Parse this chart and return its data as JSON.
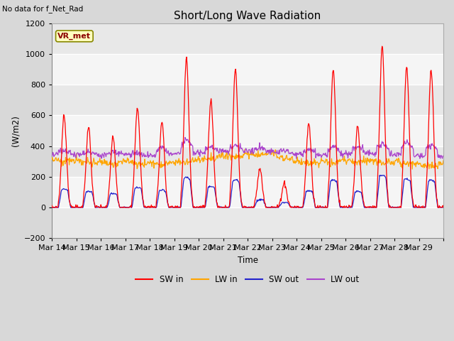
{
  "title": "Short/Long Wave Radiation",
  "xlabel": "Time",
  "ylabel": "(W/m2)",
  "topleft_text": "No data for f_Net_Rad",
  "legend_label_text": "VR_met",
  "ylim": [
    -200,
    1200
  ],
  "yticks": [
    -200,
    0,
    200,
    400,
    600,
    800,
    1000,
    1200
  ],
  "xtick_labels": [
    "Mar 14",
    "Mar 15",
    "Mar 16",
    "Mar 17",
    "Mar 18",
    "Mar 19",
    "Mar 20",
    "Mar 21",
    "Mar 22",
    "Mar 23",
    "Mar 24",
    "Mar 25",
    "Mar 26",
    "Mar 27",
    "Mar 28",
    "Mar 29"
  ],
  "legend_entries": [
    "SW in",
    "LW in",
    "SW out",
    "LW out"
  ],
  "legend_colors": [
    "#ff0000",
    "#ffa500",
    "#2222cc",
    "#aa44cc"
  ],
  "grid_color": "#cccccc",
  "plot_bg_color": "#ebebeb",
  "sw_in_color": "#ff0000",
  "lw_in_color": "#ffa500",
  "sw_out_color": "#2222cc",
  "lw_out_color": "#aa44cc",
  "figsize": [
    6.4,
    4.8
  ],
  "dpi": 100
}
